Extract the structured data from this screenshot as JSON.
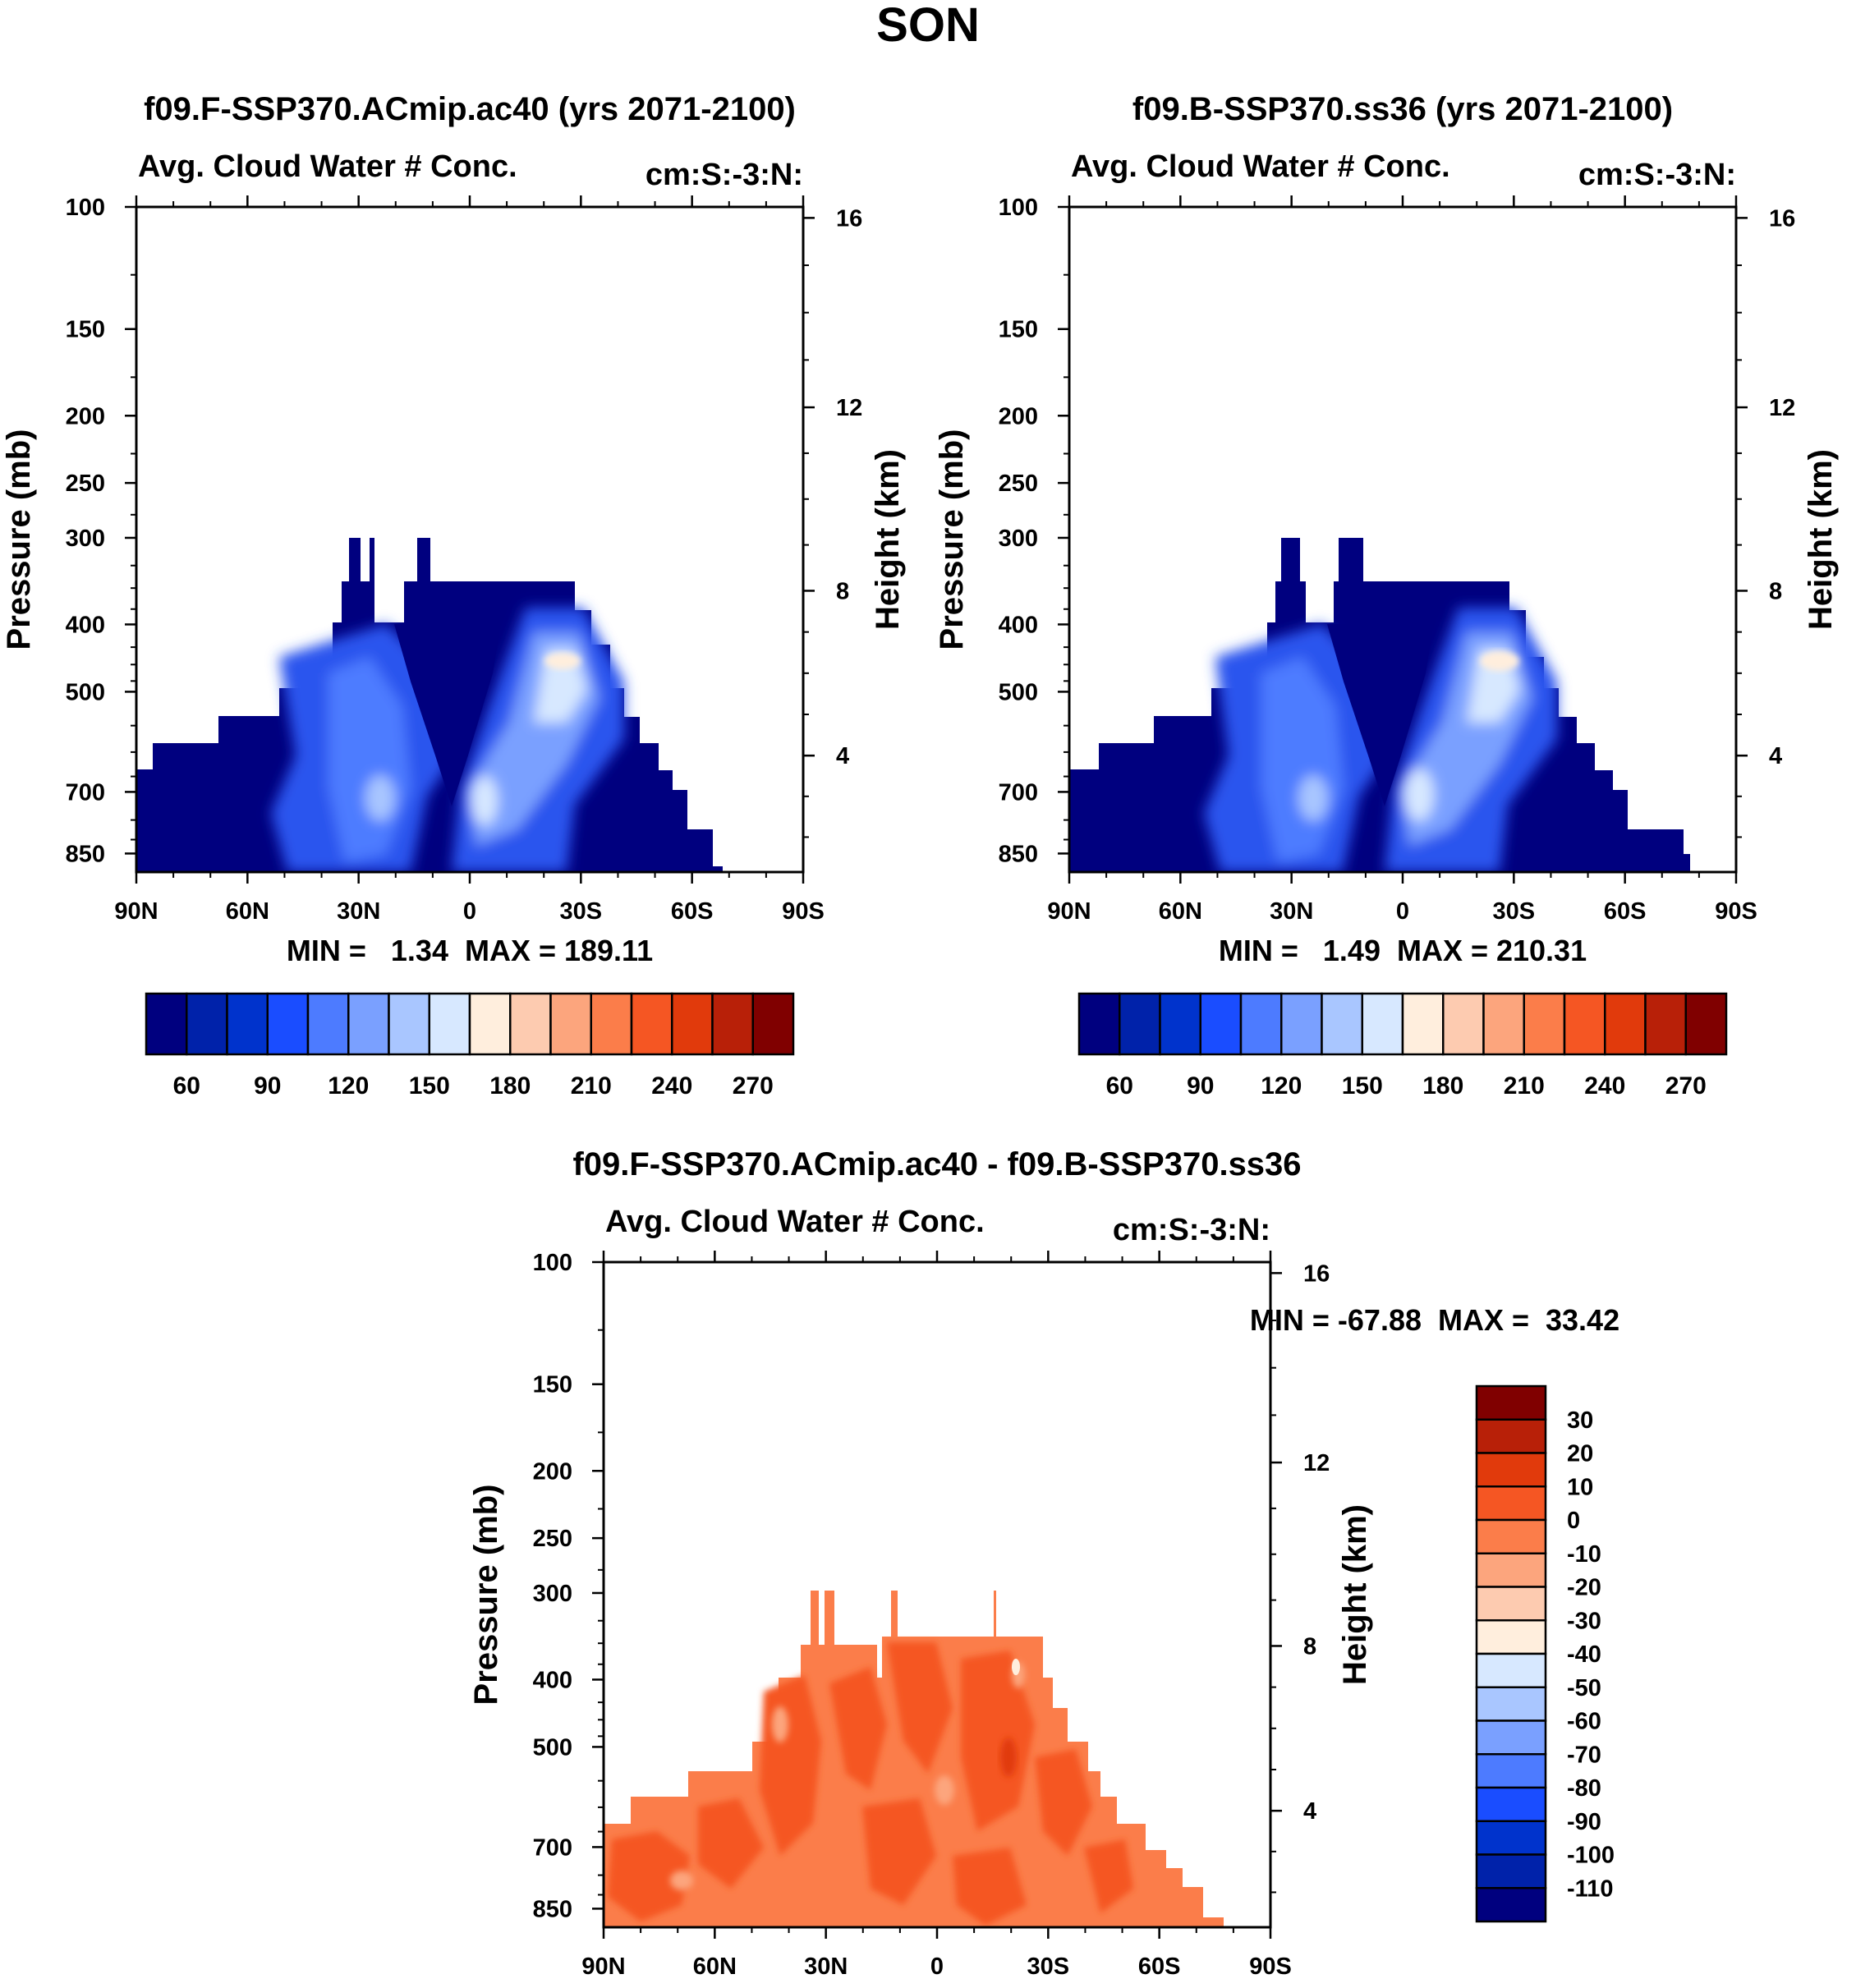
{
  "figure_title": "SON",
  "chart_data": [
    {
      "type": "contour",
      "title": "f09.F-SSP370.ACmip.ac40 (yrs 2071-2100)",
      "subtitle_left": "Avg. Cloud Water # Conc.",
      "subtitle_right": "cm:S:-3:N:",
      "ylabel": "Pressure (mb)",
      "y2label": "Height (km)",
      "xticks": [
        "90N",
        "60N",
        "30N",
        "0",
        "30S",
        "60S",
        "90S"
      ],
      "yticks": [
        "100",
        "150",
        "200",
        "250",
        "300",
        "400",
        "500",
        "700",
        "850"
      ],
      "y2ticks": [
        "16",
        "12",
        "8",
        "4"
      ],
      "stats": "MIN =   1.34  MAX = 189.11",
      "min": 1.34,
      "max": 189.11,
      "colorbar": {
        "orientation": "horizontal",
        "labels": [
          "60",
          "90",
          "120",
          "150",
          "180",
          "210",
          "240",
          "270"
        ],
        "colors": [
          "#00007f",
          "#0022aa",
          "#0033cc",
          "#1a4dff",
          "#4d7bff",
          "#7aa0ff",
          "#a9c6ff",
          "#d7e8ff",
          "#ffeedd",
          "#fdcbb0",
          "#fca57d",
          "#fb7d4a",
          "#f55623",
          "#e13a0c",
          "#b82008",
          "#800000"
        ]
      }
    },
    {
      "type": "contour",
      "title": "f09.B-SSP370.ss36 (yrs 2071-2100)",
      "subtitle_left": "Avg. Cloud Water # Conc.",
      "subtitle_right": "cm:S:-3:N:",
      "ylabel": "Pressure (mb)",
      "y2label": "Height (km)",
      "xticks": [
        "90N",
        "60N",
        "30N",
        "0",
        "30S",
        "60S",
        "90S"
      ],
      "yticks": [
        "100",
        "150",
        "200",
        "250",
        "300",
        "400",
        "500",
        "700",
        "850"
      ],
      "y2ticks": [
        "16",
        "12",
        "8",
        "4"
      ],
      "stats": "MIN =   1.49  MAX = 210.31",
      "min": 1.49,
      "max": 210.31,
      "colorbar": {
        "orientation": "horizontal",
        "labels": [
          "60",
          "90",
          "120",
          "150",
          "180",
          "210",
          "240",
          "270"
        ],
        "colors": [
          "#00007f",
          "#0022aa",
          "#0033cc",
          "#1a4dff",
          "#4d7bff",
          "#7aa0ff",
          "#a9c6ff",
          "#d7e8ff",
          "#ffeedd",
          "#fdcbb0",
          "#fca57d",
          "#fb7d4a",
          "#f55623",
          "#e13a0c",
          "#b82008",
          "#800000"
        ]
      }
    },
    {
      "type": "contour",
      "title": "f09.F-SSP370.ACmip.ac40 - f09.B-SSP370.ss36",
      "subtitle_left": "Avg. Cloud Water # Conc.",
      "subtitle_right": "cm:S:-3:N:",
      "ylabel": "Pressure (mb)",
      "y2label": "Height (km)",
      "xticks": [
        "90N",
        "60N",
        "30N",
        "0",
        "30S",
        "60S",
        "90S"
      ],
      "yticks": [
        "100",
        "150",
        "200",
        "250",
        "300",
        "400",
        "500",
        "700",
        "850"
      ],
      "y2ticks": [
        "16",
        "12",
        "8",
        "4"
      ],
      "stats": "MIN = -67.88  MAX =  33.42",
      "min": -67.88,
      "max": 33.42,
      "colorbar": {
        "orientation": "vertical",
        "labels": [
          "30",
          "20",
          "10",
          "0",
          "-10",
          "-20",
          "-30",
          "-40",
          "-50",
          "-60",
          "-70",
          "-80",
          "-90",
          "-100",
          "-110"
        ],
        "colors": [
          "#800000",
          "#b82008",
          "#e13a0c",
          "#f55623",
          "#fb7d4a",
          "#fca57d",
          "#fdcbb0",
          "#ffeedd",
          "#d7e8ff",
          "#a9c6ff",
          "#7aa0ff",
          "#4d7bff",
          "#1a4dff",
          "#0033cc",
          "#0022aa",
          "#00007f"
        ]
      }
    }
  ]
}
